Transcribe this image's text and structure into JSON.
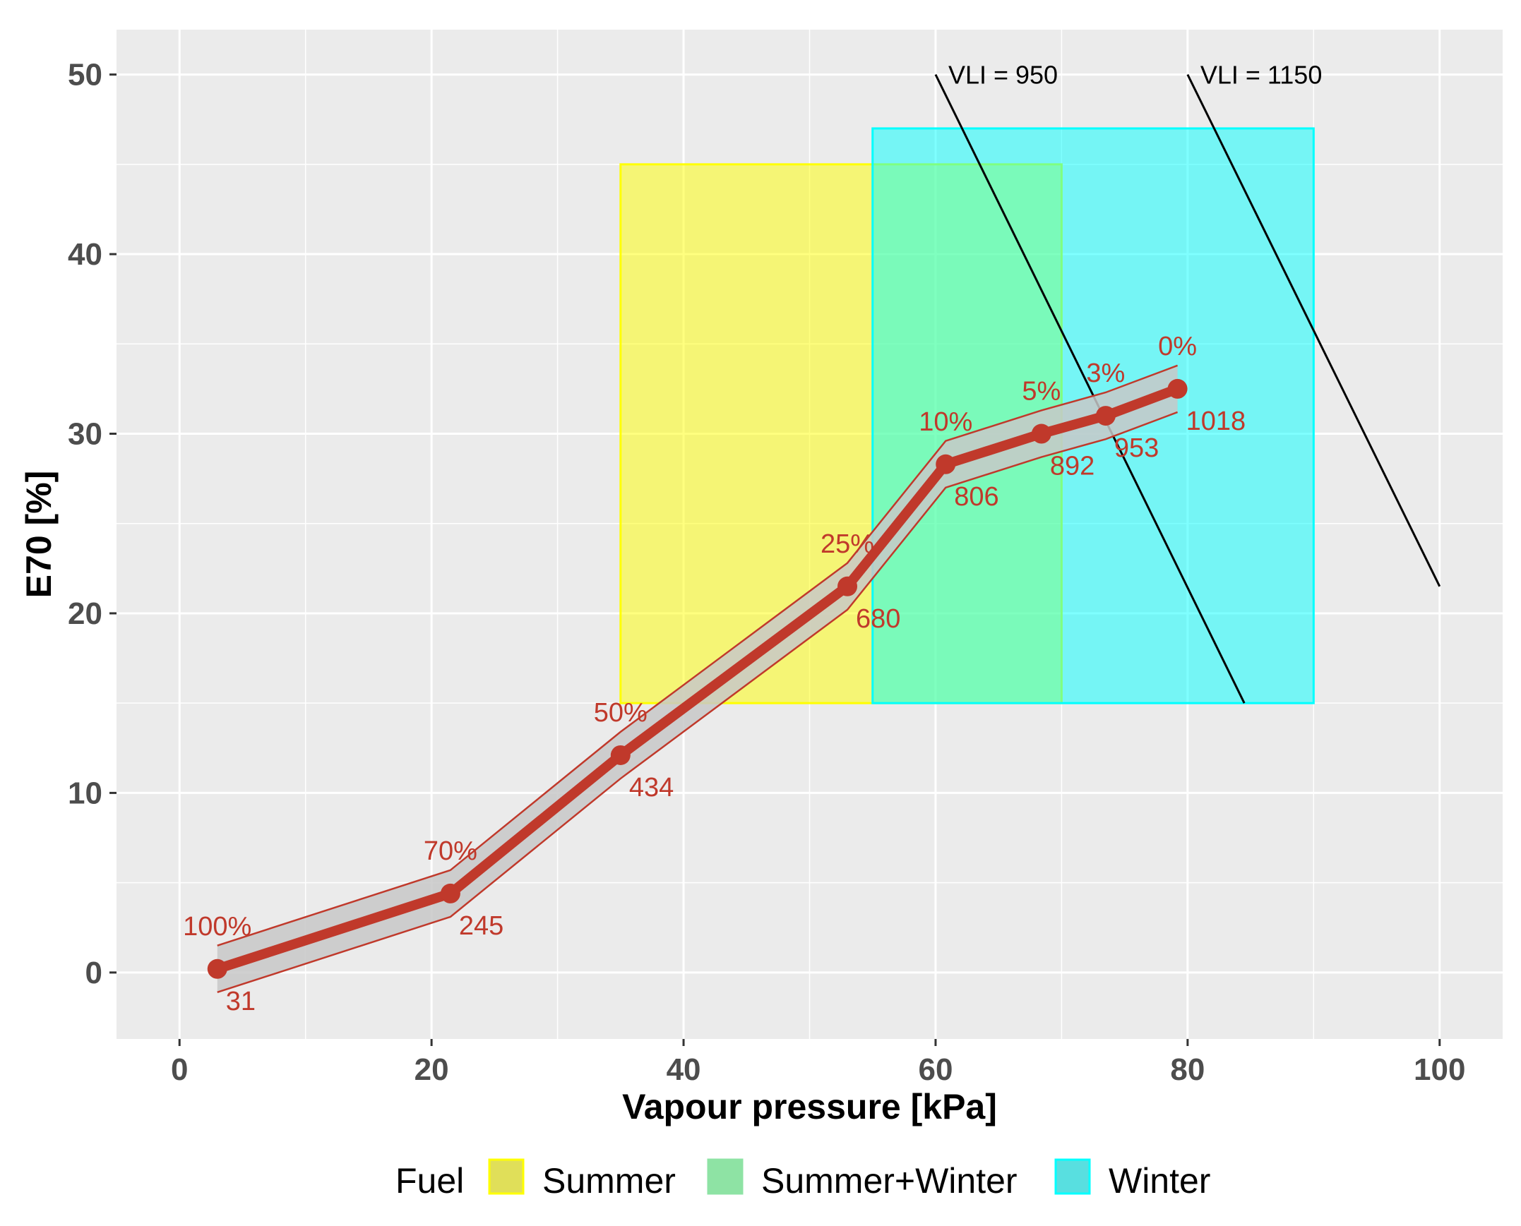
{
  "chart_data": {
    "type": "line",
    "xlabel": "Vapour pressure [kPa]",
    "ylabel": "E70 [%]",
    "xlim": [
      -5,
      105
    ],
    "ylim": [
      -3.7,
      52.5
    ],
    "x_ticks": [
      0,
      20,
      40,
      60,
      80,
      100
    ],
    "y_ticks": [
      0,
      10,
      20,
      30,
      40,
      50
    ],
    "grid": true,
    "series": [
      {
        "name": "blend",
        "points": [
          {
            "x": 3,
            "y": 0.2,
            "pct": "100%",
            "vli": "31"
          },
          {
            "x": 21.5,
            "y": 4.4,
            "pct": "70%",
            "vli": "245"
          },
          {
            "x": 35,
            "y": 12.1,
            "pct": "50%",
            "vli": "434"
          },
          {
            "x": 53,
            "y": 21.5,
            "pct": "25%",
            "vli": "680"
          },
          {
            "x": 60.8,
            "y": 28.3,
            "pct": "10%",
            "vli": "806"
          },
          {
            "x": 68.4,
            "y": 30.0,
            "pct": "5%",
            "vli": "892"
          },
          {
            "x": 73.5,
            "y": 31.0,
            "pct": "3%",
            "vli": "953"
          },
          {
            "x": 79.2,
            "y": 32.5,
            "pct": "0%",
            "vli": "1018"
          }
        ],
        "band_halfwidth": 1.3
      }
    ],
    "regions": [
      {
        "fuel": "Summer",
        "x": [
          35,
          70
        ],
        "y": [
          15,
          45
        ],
        "color": "#ffff00"
      },
      {
        "fuel": "Winter",
        "x": [
          55,
          90
        ],
        "y": [
          15,
          47
        ],
        "color": "#00ffff"
      }
    ],
    "vli_lines": [
      {
        "label": "VLI = 950",
        "x1": 60,
        "y1": 50,
        "x2": 84.5,
        "y2": 15
      },
      {
        "label": "VLI = 1150",
        "x1": 80,
        "y1": 50,
        "x2": 100,
        "y2": 21.5
      }
    ],
    "legend": {
      "title": "Fuel",
      "position": "bottom",
      "entries": [
        {
          "label": "Summer",
          "fill": "#e0df59",
          "border": "#ffff00"
        },
        {
          "label": "Summer+Winter",
          "fill": "#8ee3a4",
          "border": "#8ee3a4"
        },
        {
          "label": "Winter",
          "fill": "#58dfe0",
          "border": "#00ffff"
        }
      ]
    },
    "colors": {
      "panel": "#ebebeb",
      "grid": "#ffffff",
      "line": "#c0392b",
      "band": "#c8c8c8"
    }
  }
}
